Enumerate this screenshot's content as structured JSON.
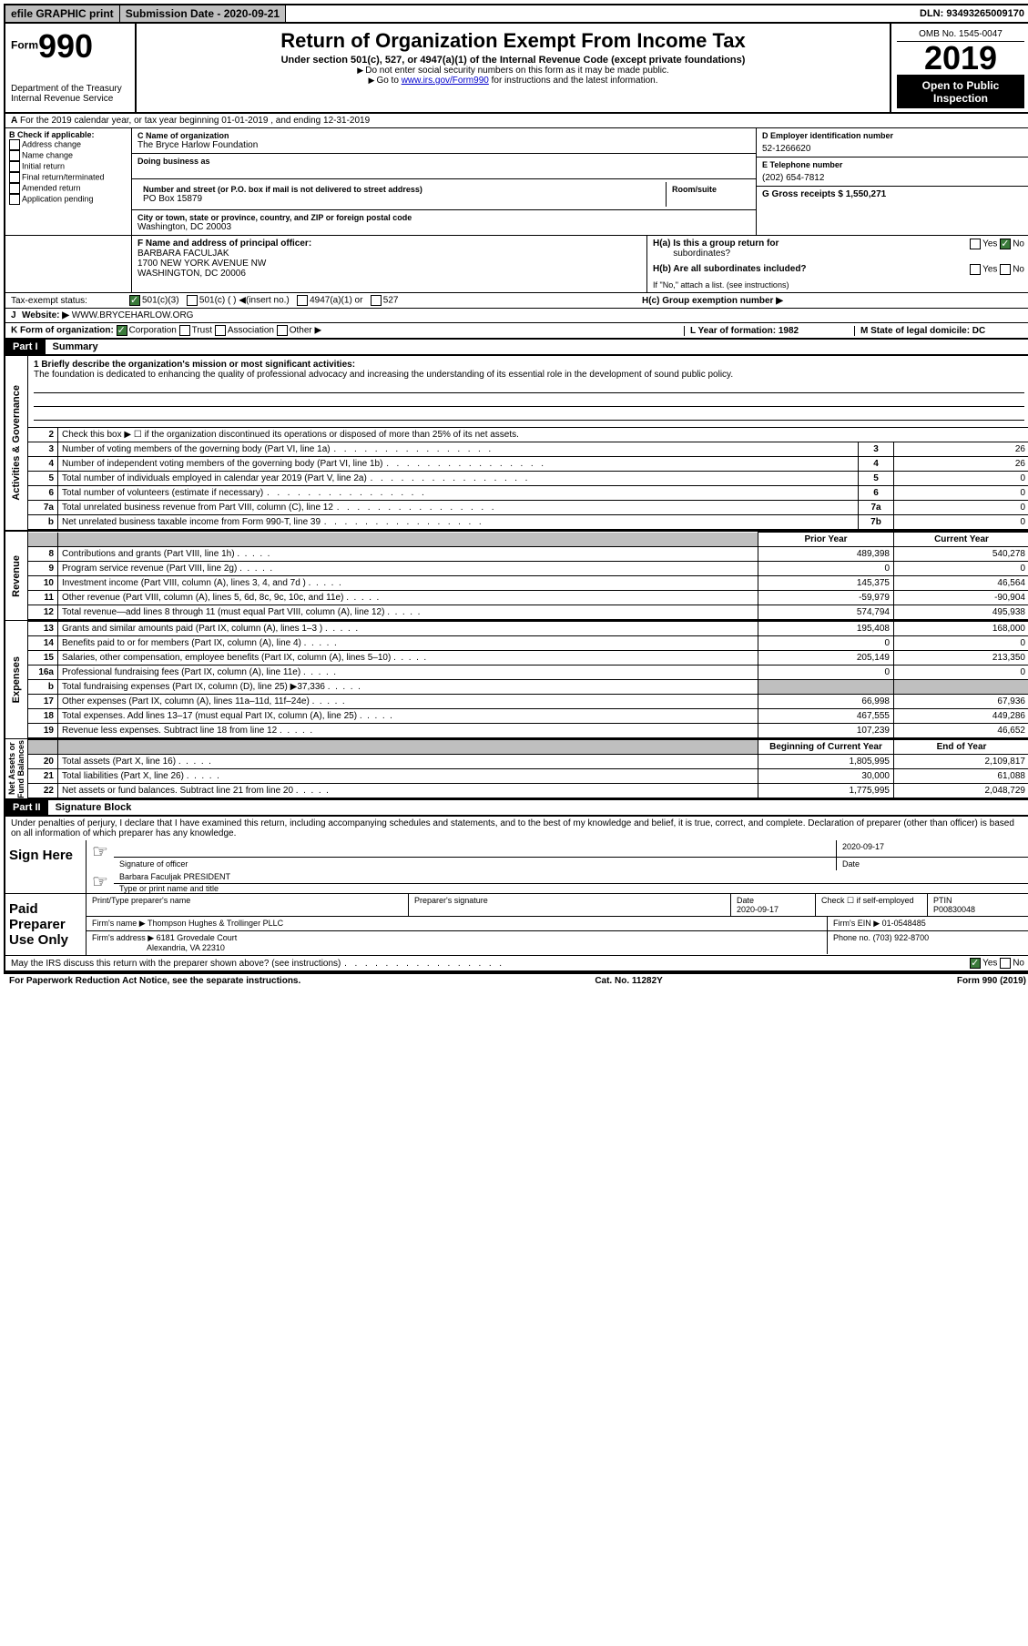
{
  "topbar": {
    "efile": "efile GRAPHIC print",
    "submission_label": "Submission Date - 2020-09-21",
    "dln_label": "DLN: 93493265009170"
  },
  "header": {
    "form_label": "Form",
    "form_num": "990",
    "dept": "Department of the Treasury",
    "irs": "Internal Revenue Service",
    "title": "Return of Organization Exempt From Income Tax",
    "subtitle": "Under section 501(c), 527, or 4947(a)(1) of the Internal Revenue Code (except private foundations)",
    "note1": "Do not enter social security numbers on this form as it may be made public.",
    "note2_pre": "Go to ",
    "note2_link": "www.irs.gov/Form990",
    "note2_post": " for instructions and the latest information.",
    "omb": "OMB No. 1545-0047",
    "year": "2019",
    "inspection": "Open to Public Inspection"
  },
  "row_a": "For the 2019 calendar year, or tax year beginning 01-01-2019   , and ending 12-31-2019",
  "b": {
    "intro": "B Check if applicable:",
    "items": [
      "Address change",
      "Name change",
      "Initial return",
      "Final return/terminated",
      "Amended return",
      "Application pending"
    ]
  },
  "c": {
    "name_lbl": "C Name of organization",
    "name": "The Bryce Harlow Foundation",
    "dba_lbl": "Doing business as",
    "addr_lbl": "Number and street (or P.O. box if mail is not delivered to street address)",
    "room_lbl": "Room/suite",
    "addr": "PO Box 15879",
    "city_lbl": "City or town, state or province, country, and ZIP or foreign postal code",
    "city": "Washington, DC  20003"
  },
  "d": {
    "lbl": "D Employer identification number",
    "val": "52-1266620"
  },
  "e": {
    "lbl": "E Telephone number",
    "val": "(202) 654-7812"
  },
  "g": {
    "lbl": "G Gross receipts $ 1,550,271"
  },
  "f": {
    "lbl": "F  Name and address of principal officer:",
    "name": "BARBARA FACULJAK",
    "addr1": "1700 NEW YORK AVENUE NW",
    "addr2": "WASHINGTON, DC  20006"
  },
  "h": {
    "a_lbl": "H(a)  Is this a group return for",
    "a_sub": "subordinates?",
    "b_lbl": "H(b)  Are all subordinates included?",
    "b_note": "If \"No,\" attach a list. (see instructions)",
    "c_lbl": "H(c)  Group exemption number ▶",
    "yes": "Yes",
    "no": "No"
  },
  "tax_exempt": {
    "lbl": "Tax-exempt status:",
    "opts": [
      "501(c)(3)",
      "501(c) (   ) ◀(insert no.)",
      "4947(a)(1) or",
      "527"
    ]
  },
  "j": {
    "lbl": "J",
    "web_lbl": "Website: ▶",
    "web": "WWW.BRYCEHARLOW.ORG"
  },
  "k": {
    "lbl": "K Form of organization:",
    "opts": [
      "Corporation",
      "Trust",
      "Association",
      "Other ▶"
    ]
  },
  "l": {
    "lbl": "L Year of formation: 1982"
  },
  "m": {
    "lbl": "M State of legal domicile: DC"
  },
  "part1": {
    "header": "Part I",
    "title": "Summary"
  },
  "mission": {
    "lbl": "1  Briefly describe the organization's mission or most significant activities:",
    "text": "The foundation is dedicated to enhancing the quality of professional advocacy and increasing the understanding of its essential role in the development of sound public policy."
  },
  "governance_label": "Activities & Governance",
  "revenue_label": "Revenue",
  "expenses_label": "Expenses",
  "netassets_label": "Net Assets or Fund Balances",
  "summary": {
    "line2": "Check this box ▶ ☐  if the organization discontinued its operations or disposed of more than 25% of its net assets.",
    "lines_gov": [
      {
        "n": "3",
        "t": "Number of voting members of the governing body (Part VI, line 1a)",
        "num": "3",
        "v": "26"
      },
      {
        "n": "4",
        "t": "Number of independent voting members of the governing body (Part VI, line 1b)",
        "num": "4",
        "v": "26"
      },
      {
        "n": "5",
        "t": "Total number of individuals employed in calendar year 2019 (Part V, line 2a)",
        "num": "5",
        "v": "0"
      },
      {
        "n": "6",
        "t": "Total number of volunteers (estimate if necessary)",
        "num": "6",
        "v": "0"
      },
      {
        "n": "7a",
        "t": "Total unrelated business revenue from Part VIII, column (C), line 12",
        "num": "7a",
        "v": "0"
      },
      {
        "n": "b",
        "t": "Net unrelated business taxable income from Form 990-T, line 39",
        "num": "7b",
        "v": "0"
      }
    ],
    "col_headers": {
      "py": "Prior Year",
      "cy": "Current Year"
    },
    "lines_rev": [
      {
        "n": "8",
        "t": "Contributions and grants (Part VIII, line 1h)",
        "py": "489,398",
        "cy": "540,278"
      },
      {
        "n": "9",
        "t": "Program service revenue (Part VIII, line 2g)",
        "py": "0",
        "cy": "0"
      },
      {
        "n": "10",
        "t": "Investment income (Part VIII, column (A), lines 3, 4, and 7d )",
        "py": "145,375",
        "cy": "46,564"
      },
      {
        "n": "11",
        "t": "Other revenue (Part VIII, column (A), lines 5, 6d, 8c, 9c, 10c, and 11e)",
        "py": "-59,979",
        "cy": "-90,904"
      },
      {
        "n": "12",
        "t": "Total revenue—add lines 8 through 11 (must equal Part VIII, column (A), line 12)",
        "py": "574,794",
        "cy": "495,938"
      }
    ],
    "lines_exp": [
      {
        "n": "13",
        "t": "Grants and similar amounts paid (Part IX, column (A), lines 1–3 )",
        "py": "195,408",
        "cy": "168,000"
      },
      {
        "n": "14",
        "t": "Benefits paid to or for members (Part IX, column (A), line 4)",
        "py": "0",
        "cy": "0"
      },
      {
        "n": "15",
        "t": "Salaries, other compensation, employee benefits (Part IX, column (A), lines 5–10)",
        "py": "205,149",
        "cy": "213,350"
      },
      {
        "n": "16a",
        "t": "Professional fundraising fees (Part IX, column (A), line 11e)",
        "py": "0",
        "cy": "0"
      },
      {
        "n": "b",
        "t": "Total fundraising expenses (Part IX, column (D), line 25) ▶37,336",
        "py": "",
        "cy": "",
        "shaded": true
      },
      {
        "n": "17",
        "t": "Other expenses (Part IX, column (A), lines 11a–11d, 11f–24e)",
        "py": "66,998",
        "cy": "67,936"
      },
      {
        "n": "18",
        "t": "Total expenses. Add lines 13–17 (must equal Part IX, column (A), line 25)",
        "py": "467,555",
        "cy": "449,286"
      },
      {
        "n": "19",
        "t": "Revenue less expenses. Subtract line 18 from line 12",
        "py": "107,239",
        "cy": "46,652"
      }
    ],
    "col_headers2": {
      "bcy": "Beginning of Current Year",
      "eoy": "End of Year"
    },
    "lines_net": [
      {
        "n": "20",
        "t": "Total assets (Part X, line 16)",
        "py": "1,805,995",
        "cy": "2,109,817"
      },
      {
        "n": "21",
        "t": "Total liabilities (Part X, line 26)",
        "py": "30,000",
        "cy": "61,088"
      },
      {
        "n": "22",
        "t": "Net assets or fund balances. Subtract line 21 from line 20",
        "py": "1,775,995",
        "cy": "2,048,729"
      }
    ]
  },
  "part2": {
    "header": "Part II",
    "title": "Signature Block"
  },
  "penalties": "Under penalties of perjury, I declare that I have examined this return, including accompanying schedules and statements, and to the best of my knowledge and belief, it is true, correct, and complete. Declaration of preparer (other than officer) is based on all information of which preparer has any knowledge.",
  "sign": {
    "label": "Sign Here",
    "sig_lbl": "Signature of officer",
    "date": "2020-09-17",
    "date_lbl": "Date",
    "name": "Barbara Faculjak PRESIDENT",
    "name_lbl": "Type or print name and title"
  },
  "paid": {
    "label": "Paid Preparer Use Only",
    "print_lbl": "Print/Type preparer's name",
    "sig_lbl": "Preparer's signature",
    "date_lbl": "Date",
    "date": "2020-09-17",
    "check_lbl": "Check ☐ if self-employed",
    "ptin_lbl": "PTIN",
    "ptin": "P00830048",
    "firm_name_lbl": "Firm's name    ▶",
    "firm_name": "Thompson Hughes & Trollinger PLLC",
    "firm_ein_lbl": "Firm's EIN ▶",
    "firm_ein": "01-0548485",
    "firm_addr_lbl": "Firm's address ▶",
    "firm_addr1": "6181 Grovedale Court",
    "firm_addr2": "Alexandria, VA  22310",
    "phone_lbl": "Phone no.",
    "phone": "(703) 922-8700"
  },
  "discuss": "May the IRS discuss this return with the preparer shown above? (see instructions)",
  "footer": {
    "paperwork": "For Paperwork Reduction Act Notice, see the separate instructions.",
    "cat": "Cat. No. 11282Y",
    "form": "Form 990 (2019)"
  }
}
